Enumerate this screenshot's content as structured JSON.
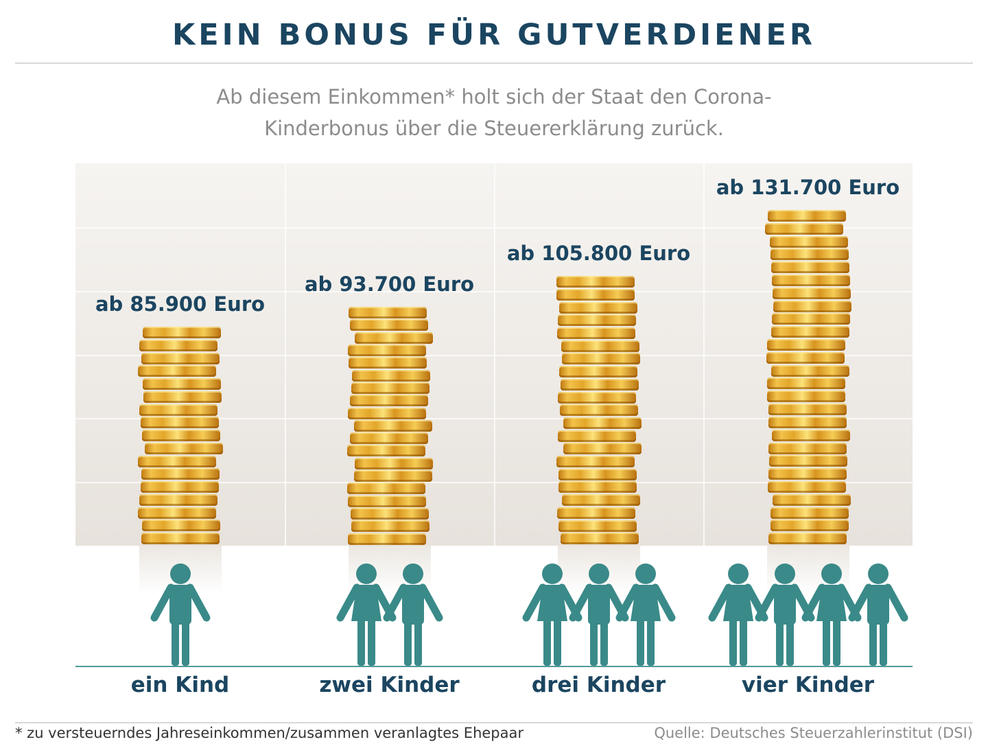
{
  "title": "KEIN BONUS FÜR GUTVERDIENER",
  "subtitle_line1": "Ab diesem Einkommen* holt sich der Staat den Corona-",
  "subtitle_line2": "Kinderbonus über die Steuererklärung zurück.",
  "footnote": "* zu versteuerndes Jahreseinkommen/zusammen veranlagtes Ehepaar",
  "source": "Quelle: Deutsches Steuerzahlerinstitut (DSI)",
  "colors": {
    "title": "#1b4560",
    "figure": "#3a8a89",
    "coin": "#e3a62a"
  },
  "chart_data": {
    "type": "bar",
    "bar_style": "coin-stacks",
    "categories": [
      "ein Kind",
      "zwei Kinder",
      "drei Kinder",
      "vier Kinder"
    ],
    "children": [
      1,
      2,
      3,
      4
    ],
    "values": [
      85900,
      93700,
      105800,
      131700
    ],
    "value_labels": [
      "ab 85.900 Euro",
      "ab 93.700 Euro",
      "ab 105.800 Euro",
      "ab 131.700 Euro"
    ],
    "ylim": [
      0,
      150000
    ],
    "grid": true,
    "grid_step": 25000,
    "unit": "Euro"
  }
}
